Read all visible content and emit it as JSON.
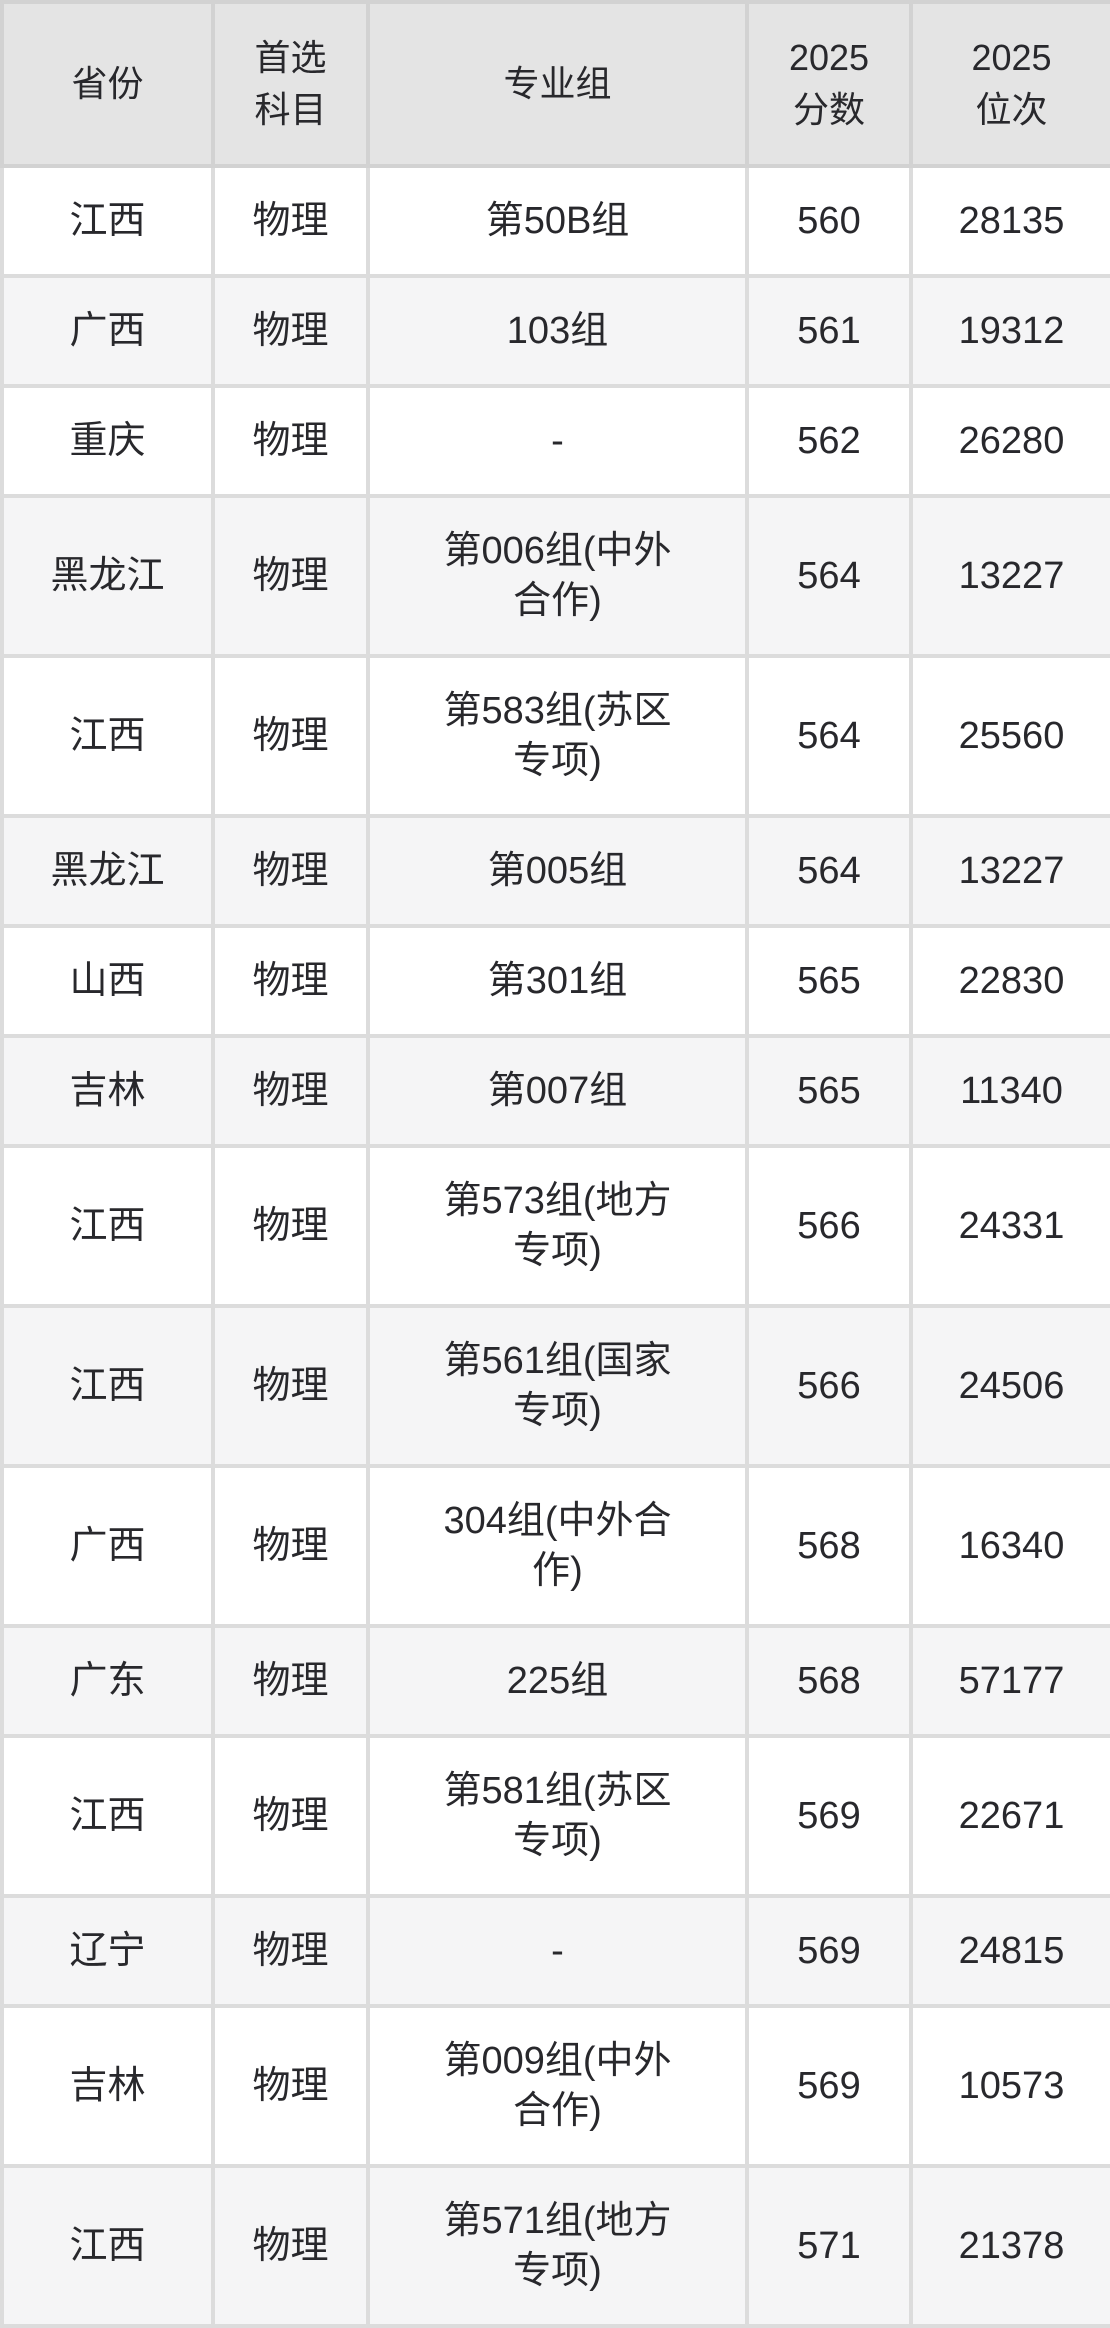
{
  "colors": {
    "header_bg": "#e4e4e4",
    "row_bg": "#ffffff",
    "row_alt_bg": "#f5f5f6",
    "border": "#dcdcdc",
    "header_border": "#d2d2d2",
    "text": "#28282c"
  },
  "chart_data": {
    "type": "table",
    "columns": [
      "省份",
      "首选\n科目",
      "专业组",
      "2025\n分数",
      "2025\n位次"
    ],
    "column_keys": [
      "province",
      "subject",
      "group",
      "score",
      "rank"
    ],
    "rows": [
      [
        "江西",
        "物理",
        "第50B组",
        "560",
        "28135"
      ],
      [
        "广西",
        "物理",
        "103组",
        "561",
        "19312"
      ],
      [
        "重庆",
        "物理",
        "-",
        "562",
        "26280"
      ],
      [
        "黑龙江",
        "物理",
        "第006组(中外\n合作)",
        "564",
        "13227"
      ],
      [
        "江西",
        "物理",
        "第583组(苏区\n专项)",
        "564",
        "25560"
      ],
      [
        "黑龙江",
        "物理",
        "第005组",
        "564",
        "13227"
      ],
      [
        "山西",
        "物理",
        "第301组",
        "565",
        "22830"
      ],
      [
        "吉林",
        "物理",
        "第007组",
        "565",
        "11340"
      ],
      [
        "江西",
        "物理",
        "第573组(地方\n专项)",
        "566",
        "24331"
      ],
      [
        "江西",
        "物理",
        "第561组(国家\n专项)",
        "566",
        "24506"
      ],
      [
        "广西",
        "物理",
        "304组(中外合\n作)",
        "568",
        "16340"
      ],
      [
        "广东",
        "物理",
        "225组",
        "568",
        "57177"
      ],
      [
        "江西",
        "物理",
        "第581组(苏区\n专项)",
        "569",
        "22671"
      ],
      [
        "辽宁",
        "物理",
        "-",
        "569",
        "24815"
      ],
      [
        "吉林",
        "物理",
        "第009组(中外\n合作)",
        "569",
        "10573"
      ],
      [
        "江西",
        "物理",
        "第571组(地方\n专项)",
        "571",
        "21378"
      ]
    ]
  }
}
